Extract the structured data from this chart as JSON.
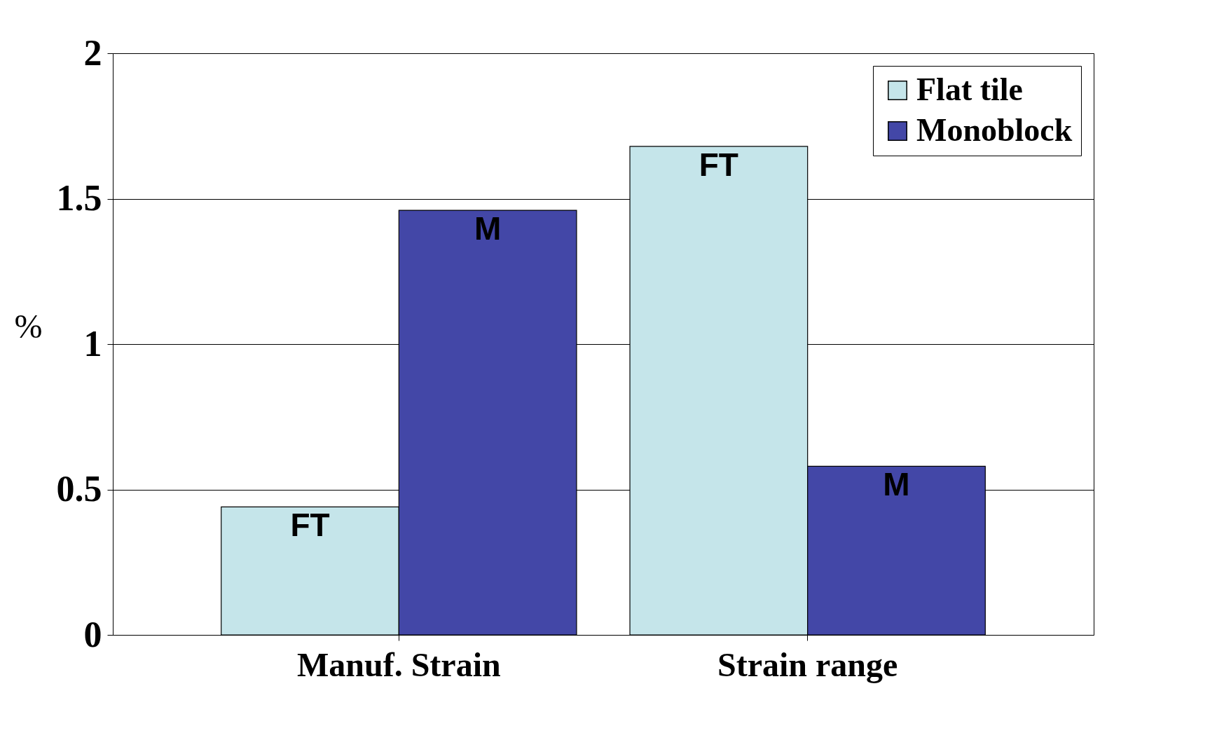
{
  "chart_data": {
    "type": "bar",
    "categories": [
      "Manuf. Strain",
      "Strain range"
    ],
    "ylabel": "%",
    "series": [
      {
        "name": "Flat tile",
        "color": "#c5e5ea",
        "values": [
          0.44,
          1.68
        ]
      },
      {
        "name": "Monoblock",
        "color": "#4347a7",
        "values": [
          1.46,
          0.58
        ]
      }
    ],
    "ylim": [
      0,
      2
    ],
    "yticks": [
      0,
      0.5,
      1,
      1.5,
      2
    ],
    "grid": "y",
    "legend": "top right",
    "annotations": [
      {
        "text": "FT",
        "x": "Manuf. Strain",
        "y": 0.44
      },
      {
        "text": "M",
        "x": "Manuf. Strain",
        "y": 1.46
      },
      {
        "text": "FT",
        "x": "Strain range",
        "y": 1.68
      },
      {
        "text": "M",
        "x": "Strain range",
        "y": 0.58
      }
    ]
  }
}
